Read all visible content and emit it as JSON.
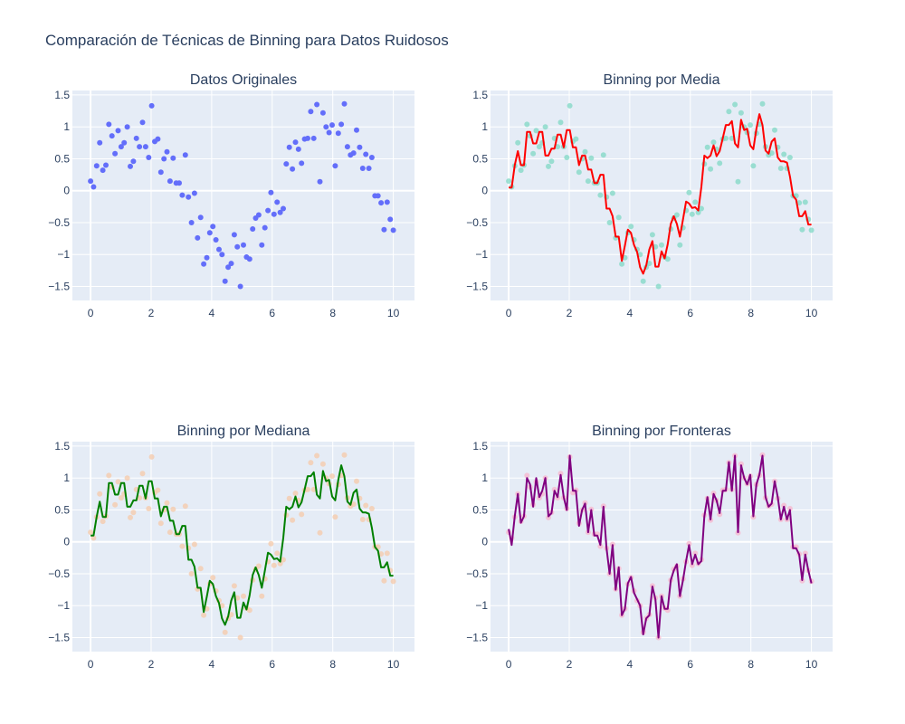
{
  "title": "Comparación de Técnicas de Binning para Datos Ruidosos",
  "colors": {
    "plot_bg": "#e5ecf6",
    "text": "#2a3f5f",
    "original_points": "#636efa",
    "mean_line": "#ff0000",
    "mean_points": "#7fd8c4",
    "median_line": "#008000",
    "median_points": "#f6c9a8",
    "boundary_line": "#800080",
    "boundary_points": "#f7b6cc"
  },
  "chart_data": [
    {
      "type": "scatter",
      "title": "Datos Originales",
      "xlim": [
        -0.6,
        10.7
      ],
      "ylim": [
        -1.72,
        1.57
      ],
      "xticks": [
        0,
        2,
        4,
        6,
        8,
        10
      ],
      "yticks": [
        -1.5,
        -1,
        -0.5,
        0,
        0.5,
        1,
        1.5
      ],
      "series": [
        {
          "mode": "markers",
          "source": "original",
          "color": "#636efa",
          "opacity": 1
        }
      ]
    },
    {
      "type": "line",
      "title": "Binning por Media",
      "xlim": [
        -0.6,
        10.7
      ],
      "ylim": [
        -1.72,
        1.57
      ],
      "xticks": [
        0,
        2,
        4,
        6,
        8,
        10
      ],
      "yticks": [
        -1.5,
        -1,
        -0.5,
        0,
        0.5,
        1,
        1.5
      ],
      "series": [
        {
          "mode": "markers",
          "source": "original",
          "color": "#7fd8c4",
          "opacity": 0.75
        },
        {
          "mode": "lines",
          "source": "mean",
          "color": "#ff0000"
        }
      ]
    },
    {
      "type": "line",
      "title": "Binning por Mediana",
      "xlim": [
        -0.6,
        10.7
      ],
      "ylim": [
        -1.72,
        1.57
      ],
      "xticks": [
        0,
        2,
        4,
        6,
        8,
        10
      ],
      "yticks": [
        -1.5,
        -1,
        -0.5,
        0,
        0.5,
        1,
        1.5
      ],
      "series": [
        {
          "mode": "markers",
          "source": "original",
          "color": "#f6c9a8",
          "opacity": 0.75
        },
        {
          "mode": "lines",
          "source": "median",
          "color": "#008000"
        }
      ]
    },
    {
      "type": "line",
      "title": "Binning por Fronteras",
      "xlim": [
        -0.6,
        10.7
      ],
      "ylim": [
        -1.72,
        1.57
      ],
      "xticks": [
        0,
        2,
        4,
        6,
        8,
        10
      ],
      "yticks": [
        -1.5,
        -1,
        -0.5,
        0,
        0.5,
        1,
        1.5
      ],
      "series": [
        {
          "mode": "markers",
          "source": "original",
          "color": "#f7b6cc",
          "opacity": 0.75
        },
        {
          "mode": "lines",
          "source": "boundary",
          "color": "#800080"
        }
      ]
    }
  ],
  "series_values": {
    "x": [
      0,
      0.101,
      0.202,
      0.303,
      0.404,
      0.505,
      0.606,
      0.707,
      0.808,
      0.909,
      1.01,
      1.111,
      1.212,
      1.313,
      1.414,
      1.515,
      1.616,
      1.717,
      1.818,
      1.919,
      2.02,
      2.121,
      2.222,
      2.323,
      2.424,
      2.525,
      2.626,
      2.727,
      2.828,
      2.929,
      3.03,
      3.131,
      3.232,
      3.333,
      3.434,
      3.535,
      3.636,
      3.737,
      3.838,
      3.939,
      4.04,
      4.141,
      4.242,
      4.343,
      4.444,
      4.545,
      4.646,
      4.747,
      4.848,
      4.949,
      5.051,
      5.152,
      5.253,
      5.354,
      5.455,
      5.556,
      5.657,
      5.758,
      5.859,
      5.96,
      6.061,
      6.162,
      6.263,
      6.364,
      6.465,
      6.566,
      6.667,
      6.768,
      6.869,
      6.97,
      7.071,
      7.172,
      7.273,
      7.374,
      7.475,
      7.576,
      7.677,
      7.778,
      7.879,
      7.98,
      8.081,
      8.182,
      8.283,
      8.384,
      8.485,
      8.586,
      8.687,
      8.788,
      8.889,
      8.99,
      9.091,
      9.192,
      9.293,
      9.394,
      9.495,
      9.596,
      9.697,
      9.798,
      9.899,
      10
    ],
    "original": [
      0.15,
      0.06,
      0.39,
      0.75,
      0.32,
      0.4,
      1.04,
      0.86,
      0.58,
      0.94,
      0.69,
      0.75,
      1.0,
      0.38,
      0.46,
      0.82,
      0.69,
      1.07,
      0.69,
      0.52,
      1.33,
      0.77,
      0.81,
      0.29,
      0.5,
      0.61,
      0.15,
      0.51,
      0.12,
      0.12,
      -0.07,
      0.56,
      -0.1,
      -0.5,
      -0.04,
      -0.74,
      -0.42,
      -1.15,
      -1.05,
      -0.66,
      -0.56,
      -0.77,
      -0.92,
      -1.0,
      -1.42,
      -1.2,
      -1.14,
      -0.69,
      -0.88,
      -1.5,
      -0.85,
      -1.04,
      -1.07,
      -0.6,
      -0.43,
      -0.38,
      -0.85,
      -0.58,
      -0.31,
      -0.03,
      -0.37,
      -0.18,
      -0.34,
      -0.28,
      0.42,
      0.68,
      0.34,
      0.76,
      0.65,
      0.43,
      0.81,
      0.82,
      1.24,
      0.82,
      1.35,
      0.14,
      1.22,
      1.0,
      0.91,
      1.03,
      0.39,
      0.9,
      1.04,
      1.36,
      0.69,
      0.56,
      0.59,
      0.95,
      0.68,
      0.35,
      0.57,
      0.35,
      0.52,
      -0.08,
      -0.08,
      -0.19,
      -0.61,
      -0.18,
      -0.45,
      -0.62
    ],
    "mean": [
      0.05,
      0.05,
      0.4,
      0.62,
      0.4,
      0.4,
      0.92,
      0.92,
      0.74,
      0.74,
      0.92,
      0.92,
      0.55,
      0.55,
      0.66,
      0.66,
      0.88,
      0.88,
      0.68,
      0.95,
      0.95,
      0.68,
      0.68,
      0.4,
      0.55,
      0.55,
      0.33,
      0.33,
      0.12,
      0.12,
      0.25,
      0.25,
      -0.28,
      -0.28,
      -0.4,
      -0.72,
      -0.72,
      -1.1,
      -0.86,
      -0.61,
      -0.66,
      -0.85,
      -0.96,
      -1.2,
      -1.3,
      -1.17,
      -0.92,
      -0.79,
      -1.19,
      -1.19,
      -0.95,
      -1.06,
      -0.84,
      -0.52,
      -0.4,
      -0.52,
      -0.72,
      -0.45,
      -0.17,
      -0.2,
      -0.27,
      -0.26,
      -0.31,
      0.06,
      0.55,
      0.51,
      0.55,
      0.71,
      0.54,
      0.62,
      0.82,
      1.03,
      1.03,
      1.09,
      0.74,
      0.68,
      1.11,
      0.95,
      0.97,
      0.71,
      0.65,
      0.97,
      1.2,
      1.03,
      0.63,
      0.58,
      0.77,
      0.82,
      0.52,
      0.46,
      0.46,
      0.44,
      0.22,
      -0.08,
      -0.14,
      -0.4,
      -0.4,
      -0.32,
      -0.53,
      -0.53
    ],
    "median": [
      0.1,
      0.1,
      0.39,
      0.63,
      0.39,
      0.39,
      0.92,
      0.92,
      0.74,
      0.74,
      0.92,
      0.92,
      0.55,
      0.55,
      0.65,
      0.65,
      0.88,
      0.88,
      0.68,
      0.95,
      0.95,
      0.68,
      0.68,
      0.4,
      0.55,
      0.55,
      0.33,
      0.33,
      0.12,
      0.12,
      0.25,
      0.25,
      -0.28,
      -0.28,
      -0.39,
      -0.72,
      -0.72,
      -1.1,
      -0.86,
      -0.61,
      -0.66,
      -0.85,
      -0.96,
      -1.2,
      -1.3,
      -1.17,
      -0.92,
      -0.79,
      -1.19,
      -1.19,
      -0.95,
      -1.06,
      -0.84,
      -0.52,
      -0.4,
      -0.52,
      -0.72,
      -0.45,
      -0.17,
      -0.2,
      -0.27,
      -0.26,
      -0.31,
      0.06,
      0.55,
      0.51,
      0.55,
      0.71,
      0.54,
      0.62,
      0.82,
      1.03,
      1.03,
      1.09,
      0.74,
      0.68,
      1.11,
      0.95,
      0.97,
      0.71,
      0.65,
      0.97,
      1.2,
      1.03,
      0.63,
      0.58,
      0.77,
      0.82,
      0.52,
      0.46,
      0.46,
      0.44,
      0.22,
      -0.08,
      -0.14,
      -0.4,
      -0.4,
      -0.32,
      -0.53,
      -0.53
    ],
    "boundary": [
      0.2,
      -0.05,
      0.4,
      0.75,
      0.3,
      0.4,
      1.0,
      0.9,
      0.55,
      1.0,
      0.7,
      0.8,
      1.0,
      0.4,
      0.45,
      0.8,
      0.7,
      1.05,
      0.7,
      0.5,
      1.35,
      0.8,
      0.8,
      0.25,
      0.5,
      0.6,
      0.15,
      0.5,
      0.1,
      0.1,
      -0.05,
      0.55,
      -0.1,
      -0.5,
      -0.05,
      -0.75,
      -0.4,
      -1.15,
      -1.05,
      -0.65,
      -0.55,
      -0.8,
      -0.9,
      -1.0,
      -1.45,
      -1.2,
      -1.15,
      -0.7,
      -0.9,
      -1.5,
      -0.85,
      -1.05,
      -1.05,
      -0.6,
      -0.45,
      -0.35,
      -0.85,
      -0.6,
      -0.3,
      -0.05,
      -0.35,
      -0.2,
      -0.35,
      -0.3,
      0.4,
      0.7,
      0.35,
      0.75,
      0.65,
      0.45,
      0.8,
      0.8,
      1.25,
      0.8,
      1.35,
      0.15,
      1.2,
      1.0,
      0.9,
      1.05,
      0.4,
      0.9,
      1.05,
      1.35,
      0.7,
      0.55,
      0.6,
      0.95,
      0.7,
      0.35,
      0.55,
      0.35,
      0.5,
      -0.1,
      -0.1,
      -0.2,
      -0.6,
      -0.2,
      -0.45,
      -0.65
    ]
  }
}
